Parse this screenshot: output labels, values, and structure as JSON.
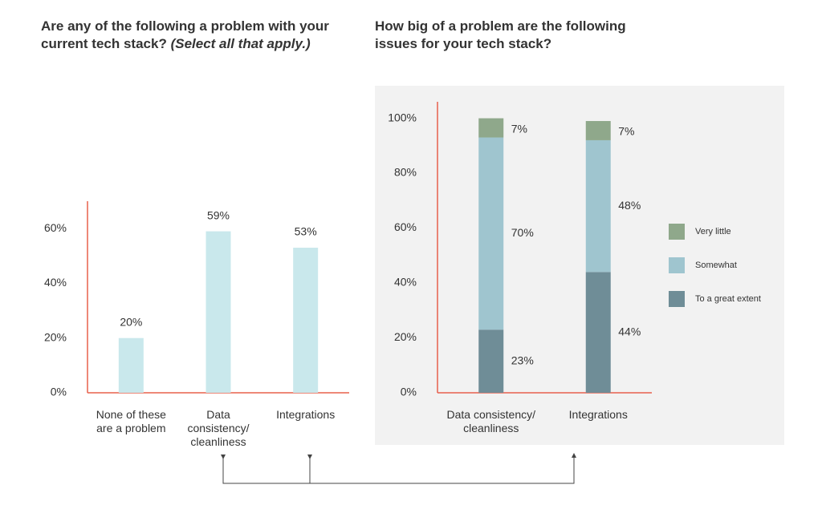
{
  "chart_data": [
    {
      "type": "bar",
      "title": "Are any of the following a problem with your current tech stack?",
      "subtitle": "(Select all that apply.)",
      "categories": [
        "None of these are a problem",
        "Data consistency/ cleanliness",
        "Integrations"
      ],
      "values": [
        20,
        59,
        53
      ],
      "value_labels": [
        "20%",
        "59%",
        "53%"
      ],
      "color": "#c9e8ec",
      "ylim": [
        0,
        70
      ],
      "yticks": [
        {
          "value": 0,
          "label": "0%"
        },
        {
          "value": 20,
          "label": "20%"
        },
        {
          "value": 40,
          "label": "40%"
        },
        {
          "value": 60,
          "label": "60%"
        }
      ]
    },
    {
      "type": "stacked_bar",
      "title": "How big of a problem are the following issues for your tech stack?",
      "categories": [
        "Data consistency/ cleanliness",
        "Integrations"
      ],
      "series": [
        {
          "name": "To a great extent",
          "color": "#6f8d97",
          "values": [
            23,
            44
          ],
          "value_labels": [
            "23%",
            "44%"
          ]
        },
        {
          "name": "Somewhat",
          "color": "#9fc5cf",
          "values": [
            70,
            48
          ],
          "value_labels": [
            "70%",
            "48%"
          ]
        },
        {
          "name": "Very little",
          "color": "#8fa88b",
          "values": [
            7,
            7
          ],
          "value_labels": [
            "7%",
            "7%"
          ]
        }
      ],
      "legend": "right",
      "ylim": [
        0,
        106
      ],
      "yticks": [
        {
          "value": 0,
          "label": "0%"
        },
        {
          "value": 20,
          "label": "20%"
        },
        {
          "value": 40,
          "label": "40%"
        },
        {
          "value": 60,
          "label": "60%"
        },
        {
          "value": 80,
          "label": "80%"
        },
        {
          "value": 100,
          "label": "100%"
        }
      ]
    }
  ]
}
